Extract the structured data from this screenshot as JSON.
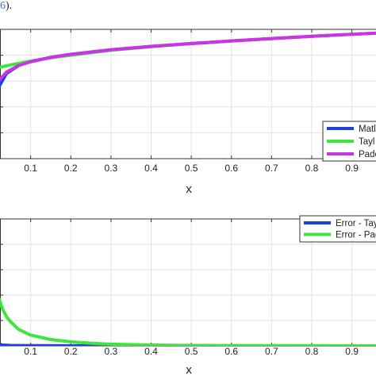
{
  "caption": {
    "prefix": "",
    "link": "6",
    "suffix": ")."
  },
  "chart_data": [
    {
      "type": "line",
      "title": "",
      "xlabel": "x",
      "ylabel": "",
      "xlim": [
        0,
        0.96
      ],
      "ylim": [
        0,
        1
      ],
      "xticks": [
        0.1,
        0.2,
        0.3,
        0.4,
        0.5,
        0.6,
        0.7,
        0.8,
        0.9
      ],
      "grid": true,
      "legend": "bottom-right",
      "series": [
        {
          "name": "Matl",
          "color": "#1f3fe0",
          "x": [
            0,
            0.005,
            0.01,
            0.02,
            0.04,
            0.07,
            0.1,
            0.15,
            0.2,
            0.3,
            0.4,
            0.5,
            0.6,
            0.7,
            0.8,
            0.9,
            0.96
          ],
          "y": [
            0.0,
            0.2,
            0.4,
            0.55,
            0.66,
            0.72,
            0.75,
            0.783,
            0.807,
            0.842,
            0.868,
            0.89,
            0.91,
            0.929,
            0.946,
            0.962,
            0.97
          ]
        },
        {
          "name": "Tayl",
          "color": "#3ce63c",
          "x": [
            0,
            0.05,
            0.1,
            0.15,
            0.2,
            0.3,
            0.4,
            0.5,
            0.6,
            0.7,
            0.8,
            0.9,
            0.96
          ],
          "y": [
            0.69,
            0.725,
            0.755,
            0.78,
            0.8,
            0.838,
            0.866,
            0.89,
            0.91,
            0.929,
            0.946,
            0.962,
            0.97
          ]
        },
        {
          "name": "Pade",
          "color": "#cc33e6",
          "x": [
            0.003,
            0.006,
            0.01,
            0.02,
            0.04,
            0.07,
            0.1,
            0.15,
            0.2,
            0.3,
            0.4,
            0.5,
            0.6,
            0.7,
            0.8,
            0.9,
            0.96
          ],
          "y": [
            0.25,
            0.4,
            0.5,
            0.6,
            0.67,
            0.72,
            0.75,
            0.783,
            0.807,
            0.842,
            0.868,
            0.89,
            0.91,
            0.929,
            0.946,
            0.962,
            0.97
          ]
        }
      ]
    },
    {
      "type": "line",
      "title": "",
      "xlabel": "x",
      "ylabel": "",
      "xlim": [
        0,
        0.96
      ],
      "ylim": [
        0,
        1
      ],
      "xticks": [
        0.1,
        0.2,
        0.3,
        0.4,
        0.5,
        0.6,
        0.7,
        0.8,
        0.9
      ],
      "grid": true,
      "legend": "top-right",
      "series": [
        {
          "name": "Error - Tay",
          "color": "#1f3fe0",
          "x": [
            0,
            0.002,
            0.005,
            0.01,
            0.015,
            0.02,
            0.03,
            0.05,
            0.08,
            0.12,
            0.2,
            0.3,
            0.96
          ],
          "y": [
            0.22,
            0.18,
            0.12,
            0.06,
            0.03,
            0.015,
            0.006,
            0.003,
            0.002,
            0.0015,
            0.001,
            0.0005,
            0.0
          ]
        },
        {
          "name": "Error - Pad",
          "color": "#3ce63c",
          "x": [
            0,
            0.005,
            0.01,
            0.015,
            0.02,
            0.03,
            0.04,
            0.05,
            0.07,
            0.1,
            0.15,
            0.2,
            0.25,
            0.3,
            0.4,
            0.5,
            0.96
          ],
          "y": [
            0.85,
            0.7,
            0.55,
            0.45,
            0.38,
            0.29,
            0.23,
            0.19,
            0.13,
            0.085,
            0.05,
            0.032,
            0.02,
            0.013,
            0.006,
            0.003,
            0.0
          ]
        }
      ]
    }
  ]
}
